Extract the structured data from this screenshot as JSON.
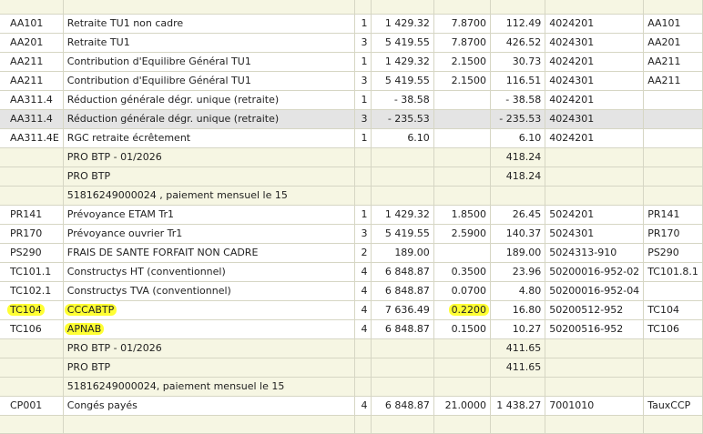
{
  "rows": [
    {
      "kind": "sub",
      "cells": [
        "",
        "",
        "",
        "",
        "",
        "",
        "",
        ""
      ]
    },
    {
      "kind": "data",
      "cells": [
        "AA101",
        "Retraite TU1 non cadre",
        "1",
        "1 429.32",
        "7.8700",
        "112.49",
        "4024201",
        "AA101"
      ]
    },
    {
      "kind": "data",
      "cells": [
        "AA201",
        "Retraite TU1",
        "3",
        "5 419.55",
        "7.8700",
        "426.52",
        "4024301",
        "AA201"
      ]
    },
    {
      "kind": "data",
      "cells": [
        "AA211",
        "Contribution d'Equilibre Général TU1",
        "1",
        "1 429.32",
        "2.1500",
        "30.73",
        "4024201",
        "AA211"
      ]
    },
    {
      "kind": "data",
      "cells": [
        "AA211",
        "Contribution d'Equilibre Général TU1",
        "3",
        "5 419.55",
        "2.1500",
        "116.51",
        "4024301",
        "AA211"
      ]
    },
    {
      "kind": "data",
      "cells": [
        "AA311.4",
        "Réduction générale dégr. unique (retraite)",
        "1",
        "- 38.58",
        "",
        "- 38.58",
        "4024201",
        ""
      ]
    },
    {
      "kind": "sel",
      "cells": [
        "AA311.4",
        "Réduction générale dégr. unique (retraite)",
        "3",
        "- 235.53",
        "",
        "- 235.53",
        "4024301",
        ""
      ]
    },
    {
      "kind": "data",
      "cells": [
        "AA311.4E",
        "RGC retraite écrêtement",
        "1",
        "6.10",
        "",
        "6.10",
        "4024201",
        ""
      ]
    },
    {
      "kind": "sub",
      "cells": [
        "",
        "PRO BTP - 01/2026",
        "",
        "",
        "",
        "418.24",
        "",
        ""
      ]
    },
    {
      "kind": "sub",
      "cells": [
        "",
        "PRO BTP",
        "",
        "",
        "",
        "418.24",
        "",
        ""
      ]
    },
    {
      "kind": "sub",
      "cells": [
        "",
        "51816249000024 , paiement mensuel le 15",
        "",
        "",
        "",
        "",
        "",
        ""
      ]
    },
    {
      "kind": "data",
      "cells": [
        "PR141",
        "Prévoyance ETAM Tr1",
        "1",
        "1 429.32",
        "1.8500",
        "26.45",
        "5024201",
        "PR141"
      ]
    },
    {
      "kind": "data",
      "cells": [
        "PR170",
        "Prévoyance ouvrier Tr1",
        "3",
        "5 419.55",
        "2.5900",
        "140.37",
        "5024301",
        "PR170"
      ]
    },
    {
      "kind": "data",
      "cells": [
        "PS290",
        "FRAIS DE SANTE FORFAIT NON CADRE",
        "2",
        "189.00",
        "",
        "189.00",
        "5024313-910",
        "PS290"
      ]
    },
    {
      "kind": "data",
      "cells": [
        "TC101.1",
        "Constructys HT (conventionnel)",
        "4",
        "6 848.87",
        "0.3500",
        "23.96",
        "50200016-952-02",
        "TC101.8.1"
      ]
    },
    {
      "kind": "data",
      "cells": [
        "TC102.1",
        "Constructys TVA (conventionnel)",
        "4",
        "6 848.87",
        "0.0700",
        "4.80",
        "50200016-952-04",
        ""
      ]
    },
    {
      "kind": "data",
      "hl": [
        0,
        1,
        4
      ],
      "cells": [
        "TC104",
        "CCCABTP",
        "4",
        "7 636.49",
        "0.2200",
        "16.80",
        "50200512-952",
        "TC104"
      ]
    },
    {
      "kind": "data",
      "hl": [
        1
      ],
      "cells": [
        "TC106",
        "APNAB",
        "4",
        "6 848.87",
        "0.1500",
        "10.27",
        "50200516-952",
        "TC106"
      ]
    },
    {
      "kind": "sub",
      "cells": [
        "",
        "PRO BTP - 01/2026",
        "",
        "",
        "",
        "411.65",
        "",
        ""
      ]
    },
    {
      "kind": "sub",
      "cells": [
        "",
        "PRO BTP",
        "",
        "",
        "",
        "411.65",
        "",
        ""
      ]
    },
    {
      "kind": "sub",
      "cells": [
        "",
        "51816249000024, paiement mensuel le 15",
        "",
        "",
        "",
        "",
        "",
        ""
      ]
    },
    {
      "kind": "data",
      "cells": [
        "CP001",
        "Congés payés",
        "4",
        "6 848.87",
        "21.0000",
        "1 438.27",
        "7001010",
        "TauxCCP"
      ]
    },
    {
      "kind": "sub",
      "cells": [
        "",
        "",
        "",
        "",
        "",
        "",
        "",
        ""
      ]
    }
  ]
}
